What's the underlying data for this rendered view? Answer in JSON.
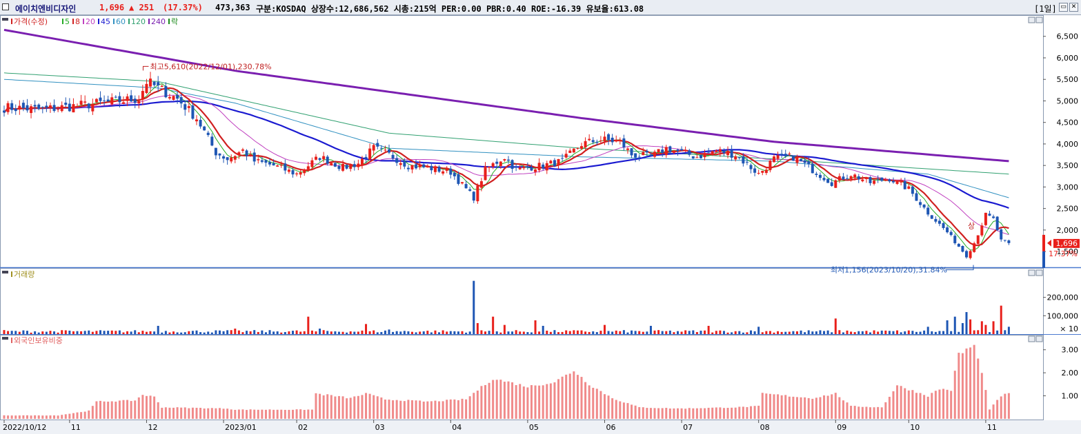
{
  "header": {
    "name": "에이치엔비디자인",
    "price": "1,696",
    "change": "▲ 251",
    "change_pct": "(17.37%)",
    "volume": "473,363",
    "info": "구분:KOSDAQ 상장수:12,686,562 시총:215억 PER:0.00 PBR:0.40 ROE:-16.39 유보율:613.08",
    "period": "[1일]",
    "colors": {
      "up": "#e8201b",
      "down": "#1e56b4",
      "name": "#1a1a7a"
    }
  },
  "chart_data": [
    {
      "type": "candlestick",
      "title": "가격(수정)",
      "legend": [
        {
          "label": "가격(수정)",
          "color": "#d02020"
        },
        {
          "label": "5",
          "color": "#22aa22"
        },
        {
          "label": "8",
          "color": "#d02020"
        },
        {
          "label": "20",
          "color": "#c040c0"
        },
        {
          "label": "45",
          "color": "#1a1ad0"
        },
        {
          "label": "60",
          "color": "#3090c0"
        },
        {
          "label": "120",
          "color": "#30a070"
        },
        {
          "label": "240",
          "color": "#7a1fb0"
        },
        {
          "label": "락",
          "color": "#1a8a1a"
        }
      ],
      "y_ticks": [
        "6,500",
        "6,000",
        "5,500",
        "5,000",
        "4,500",
        "4,000",
        "3,500",
        "3,000",
        "2,500",
        "2,000",
        "1,500"
      ],
      "y_tick_values": [
        6500,
        6000,
        5500,
        5000,
        4500,
        4000,
        3500,
        3000,
        2500,
        2000,
        1500
      ],
      "ylim": [
        1150,
        6800
      ],
      "x_labels": [
        "2022/10/12",
        "11",
        "12",
        "2023/01",
        "02",
        "03",
        "04",
        "05",
        "06",
        "07",
        "08",
        "09",
        "10",
        "11"
      ],
      "x_label_days": [
        0,
        17,
        37,
        57,
        76,
        96,
        116,
        136,
        156,
        176,
        196,
        216,
        235,
        255
      ],
      "close_anchors": [
        [
          0,
          4850
        ],
        [
          10,
          4800
        ],
        [
          20,
          4900
        ],
        [
          30,
          5000
        ],
        [
          35,
          5050
        ],
        [
          37,
          5450
        ],
        [
          40,
          5300
        ],
        [
          45,
          5050
        ],
        [
          50,
          4600
        ],
        [
          55,
          3800
        ],
        [
          58,
          3650
        ],
        [
          62,
          3850
        ],
        [
          65,
          3600
        ],
        [
          70,
          3500
        ],
        [
          76,
          3300
        ],
        [
          82,
          3700
        ],
        [
          88,
          3450
        ],
        [
          92,
          3550
        ],
        [
          96,
          3900
        ],
        [
          100,
          3750
        ],
        [
          105,
          3500
        ],
        [
          110,
          3450
        ],
        [
          116,
          3350
        ],
        [
          122,
          2750
        ],
        [
          125,
          3400
        ],
        [
          130,
          3700
        ],
        [
          133,
          3400
        ],
        [
          136,
          3450
        ],
        [
          140,
          3500
        ],
        [
          145,
          3600
        ],
        [
          150,
          4000
        ],
        [
          155,
          4100
        ],
        [
          160,
          4050
        ],
        [
          163,
          3750
        ],
        [
          168,
          3700
        ],
        [
          172,
          3900
        ],
        [
          176,
          3800
        ],
        [
          180,
          3700
        ],
        [
          185,
          3850
        ],
        [
          190,
          3750
        ],
        [
          196,
          3300
        ],
        [
          200,
          3650
        ],
        [
          205,
          3700
        ],
        [
          210,
          3400
        ],
        [
          215,
          3100
        ],
        [
          220,
          3300
        ],
        [
          225,
          3100
        ],
        [
          230,
          3200
        ],
        [
          235,
          2950
        ],
        [
          240,
          2400
        ],
        [
          245,
          1950
        ],
        [
          250,
          1400
        ],
        [
          252,
          1700
        ],
        [
          255,
          2350
        ],
        [
          257,
          2250
        ],
        [
          259,
          1750
        ],
        [
          261,
          1696
        ]
      ],
      "current_price": {
        "value": "1,696",
        "pct": "17.37%",
        "y": 1696
      },
      "annotations": {
        "high": "최고5,610(2022/12/01),230.78%",
        "high_day": 37,
        "high_value": 5610,
        "low": "최저1,156(2023/10/20),31.84%",
        "low_day": 250,
        "low_value": 1156,
        "ha": "상"
      },
      "ma_anchors": {
        "240": [
          [
            0,
            6650
          ],
          [
            60,
            5700
          ],
          [
            150,
            4600
          ],
          [
            200,
            4050
          ],
          [
            261,
            3600
          ]
        ],
        "120": [
          [
            0,
            5650
          ],
          [
            40,
            5450
          ],
          [
            100,
            4250
          ],
          [
            150,
            3900
          ],
          [
            200,
            3650
          ],
          [
            261,
            3300
          ]
        ],
        "60": [
          [
            0,
            5500
          ],
          [
            40,
            5300
          ],
          [
            60,
            4950
          ],
          [
            100,
            3900
          ],
          [
            150,
            3700
          ],
          [
            200,
            3600
          ],
          [
            240,
            3300
          ],
          [
            261,
            2750
          ]
        ]
      }
    },
    {
      "type": "bar",
      "title": "거래량",
      "legend_color": "#a09020",
      "y_ticks": [
        "200,000",
        "100,000"
      ],
      "y_tick_values": [
        200000,
        100000
      ],
      "multiplier": "× 10",
      "ylim": [
        0,
        300000
      ],
      "spikes": [
        [
          0,
          22000
        ],
        [
          40,
          45000
        ],
        [
          60,
          30000
        ],
        [
          79,
          95000
        ],
        [
          82,
          30000
        ],
        [
          94,
          55000
        ],
        [
          100,
          25000
        ],
        [
          122,
          290000
        ],
        [
          123,
          60000
        ],
        [
          127,
          95000
        ],
        [
          130,
          50000
        ],
        [
          138,
          75000
        ],
        [
          140,
          45000
        ],
        [
          156,
          50000
        ],
        [
          168,
          45000
        ],
        [
          183,
          45000
        ],
        [
          196,
          40000
        ],
        [
          216,
          85000
        ],
        [
          240,
          40000
        ],
        [
          245,
          75000
        ],
        [
          247,
          95000
        ],
        [
          249,
          60000
        ],
        [
          250,
          120000
        ],
        [
          251,
          80000
        ],
        [
          254,
          70000
        ],
        [
          255,
          50000
        ],
        [
          257,
          70000
        ],
        [
          259,
          155000
        ],
        [
          261,
          40000
        ]
      ],
      "spike_colors": {
        "79": "up",
        "94": "up",
        "122": "down",
        "123": "up",
        "127": "up",
        "138": "up",
        "216": "up",
        "247": "down",
        "250": "down",
        "254": "up",
        "257": "up",
        "259": "up"
      }
    },
    {
      "type": "bar",
      "title": "외국인보유비중",
      "legend_color": "#e06060",
      "y_ticks": [
        "3.00",
        "2.00",
        "1.00"
      ],
      "y_tick_values": [
        3.0,
        2.0,
        1.0
      ],
      "ylim": [
        0,
        3.5
      ],
      "anchors": [
        [
          0,
          0.15
        ],
        [
          14,
          0.15
        ],
        [
          22,
          0.35
        ],
        [
          24,
          0.75
        ],
        [
          34,
          0.8
        ],
        [
          36,
          1.05
        ],
        [
          39,
          0.95
        ],
        [
          41,
          0.5
        ],
        [
          58,
          0.45
        ],
        [
          60,
          0.4
        ],
        [
          80,
          0.4
        ],
        [
          81,
          1.1
        ],
        [
          90,
          0.9
        ],
        [
          94,
          1.1
        ],
        [
          99,
          0.85
        ],
        [
          110,
          0.75
        ],
        [
          120,
          0.85
        ],
        [
          123,
          1.25
        ],
        [
          127,
          1.75
        ],
        [
          131,
          1.6
        ],
        [
          136,
          1.4
        ],
        [
          143,
          1.6
        ],
        [
          148,
          2.1
        ],
        [
          152,
          1.5
        ],
        [
          158,
          0.9
        ],
        [
          165,
          0.5
        ],
        [
          175,
          0.45
        ],
        [
          190,
          0.5
        ],
        [
          196,
          0.55
        ],
        [
          197,
          1.1
        ],
        [
          210,
          0.9
        ],
        [
          216,
          1.1
        ],
        [
          220,
          0.55
        ],
        [
          228,
          0.5
        ],
        [
          232,
          1.45
        ],
        [
          240,
          1.0
        ],
        [
          243,
          1.3
        ],
        [
          246,
          1.25
        ],
        [
          248,
          2.8
        ],
        [
          250,
          3.0
        ],
        [
          252,
          3.2
        ],
        [
          254,
          1.95
        ],
        [
          255,
          1.3
        ],
        [
          256,
          0.4
        ],
        [
          259,
          1.0
        ],
        [
          261,
          1.1
        ]
      ]
    }
  ]
}
